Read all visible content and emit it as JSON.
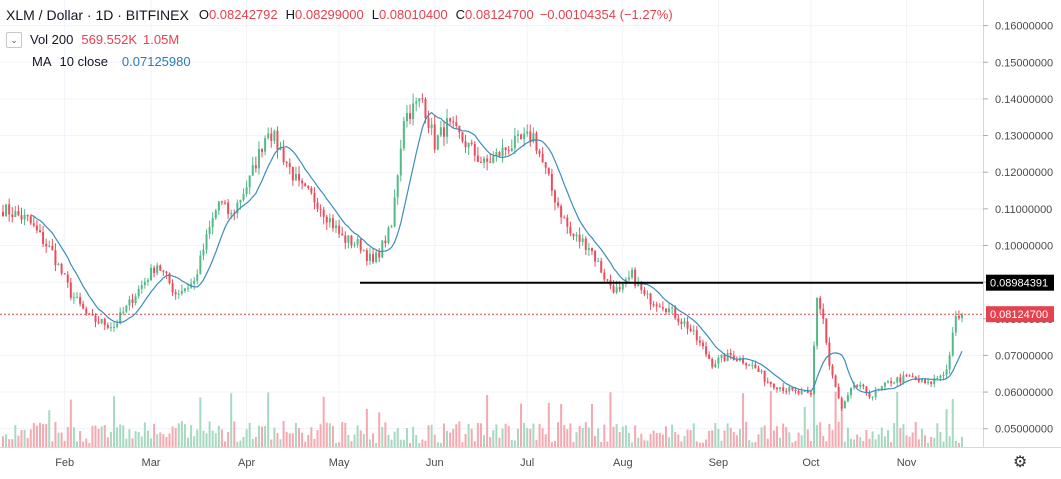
{
  "header": {
    "symbol": "XLM / Dollar · 1D · BITFINEX",
    "ohlc": [
      {
        "k": "O",
        "v": "0.08242792"
      },
      {
        "k": "H",
        "v": "0.08299000"
      },
      {
        "k": "L",
        "v": "0.08010400"
      },
      {
        "k": "C",
        "v": "0.08124700"
      },
      {
        "k": "",
        "v": "−0.00104354 (−1.27%)"
      }
    ]
  },
  "indicators": {
    "volume": {
      "name": "Vol 200",
      "v1": "569.552K",
      "v2": "1.05M"
    },
    "ma": {
      "name": "MA",
      "params": "10 close",
      "value": "0.07125980"
    }
  },
  "colors": {
    "up": "#53b987",
    "down": "#eb4d5c",
    "up_vol": "#a6d9c0",
    "down_vol": "#f4a9b0",
    "ma": "#3c8dbc",
    "price_line": "#e5424d",
    "level_line": "#000000",
    "grid": "#f0f3fa"
  },
  "icons": {
    "collapse": "chevron-down-icon",
    "settings": "gear-icon"
  },
  "chart_data": {
    "type": "candlestick",
    "instrument": "XLM / Dollar",
    "interval": "1D",
    "exchange": "BITFINEX",
    "ylim": [
      0.045,
      0.167
    ],
    "y_ticks": [
      "0.16000000",
      "0.15000000",
      "0.14000000",
      "0.13000000",
      "0.12000000",
      "0.11000000",
      "0.10000000",
      "0.09000000",
      "0.08000000",
      "0.07000000",
      "0.06000000",
      "0.05000000"
    ],
    "x_ticks": [
      "Feb",
      "Mar",
      "Apr",
      "May",
      "Jun",
      "Jul",
      "Aug",
      "Sep",
      "Oct",
      "Nov"
    ],
    "last_price": "0.08124700",
    "horizontal_level": "0.08984391",
    "close_path": [
      {
        "d": 0,
        "c": 0.11
      },
      {
        "d": 8,
        "c": 0.107
      },
      {
        "d": 16,
        "c": 0.098
      },
      {
        "d": 22,
        "c": 0.087
      },
      {
        "d": 28,
        "c": 0.08
      },
      {
        "d": 36,
        "c": 0.078
      },
      {
        "d": 44,
        "c": 0.088
      },
      {
        "d": 50,
        "c": 0.095
      },
      {
        "d": 56,
        "c": 0.087
      },
      {
        "d": 62,
        "c": 0.09
      },
      {
        "d": 66,
        "c": 0.102
      },
      {
        "d": 70,
        "c": 0.112
      },
      {
        "d": 74,
        "c": 0.108
      },
      {
        "d": 80,
        "c": 0.118
      },
      {
        "d": 86,
        "c": 0.132
      },
      {
        "d": 90,
        "c": 0.126
      },
      {
        "d": 96,
        "c": 0.116
      },
      {
        "d": 102,
        "c": 0.112
      },
      {
        "d": 110,
        "c": 0.102
      },
      {
        "d": 116,
        "c": 0.1
      },
      {
        "d": 120,
        "c": 0.095
      },
      {
        "d": 126,
        "c": 0.105
      },
      {
        "d": 130,
        "c": 0.135
      },
      {
        "d": 136,
        "c": 0.14
      },
      {
        "d": 140,
        "c": 0.128
      },
      {
        "d": 144,
        "c": 0.133
      },
      {
        "d": 150,
        "c": 0.128
      },
      {
        "d": 156,
        "c": 0.122
      },
      {
        "d": 164,
        "c": 0.127
      },
      {
        "d": 172,
        "c": 0.13
      },
      {
        "d": 178,
        "c": 0.115
      },
      {
        "d": 184,
        "c": 0.103
      },
      {
        "d": 190,
        "c": 0.1
      },
      {
        "d": 196,
        "c": 0.09
      },
      {
        "d": 200,
        "c": 0.087
      },
      {
        "d": 204,
        "c": 0.092
      },
      {
        "d": 208,
        "c": 0.086
      },
      {
        "d": 214,
        "c": 0.084
      },
      {
        "d": 222,
        "c": 0.078
      },
      {
        "d": 230,
        "c": 0.068
      },
      {
        "d": 236,
        "c": 0.07
      },
      {
        "d": 242,
        "c": 0.068
      },
      {
        "d": 248,
        "c": 0.063
      },
      {
        "d": 256,
        "c": 0.06
      },
      {
        "d": 262,
        "c": 0.059
      },
      {
        "d": 264,
        "c": 0.086
      },
      {
        "d": 266,
        "c": 0.08
      },
      {
        "d": 268,
        "c": 0.067
      },
      {
        "d": 272,
        "c": 0.055
      },
      {
        "d": 276,
        "c": 0.062
      },
      {
        "d": 282,
        "c": 0.059
      },
      {
        "d": 288,
        "c": 0.063
      },
      {
        "d": 294,
        "c": 0.064
      },
      {
        "d": 300,
        "c": 0.062
      },
      {
        "d": 306,
        "c": 0.066
      },
      {
        "d": 309,
        "c": 0.08
      },
      {
        "d": 311,
        "c": 0.08125
      }
    ],
    "ma_period": 10
  }
}
